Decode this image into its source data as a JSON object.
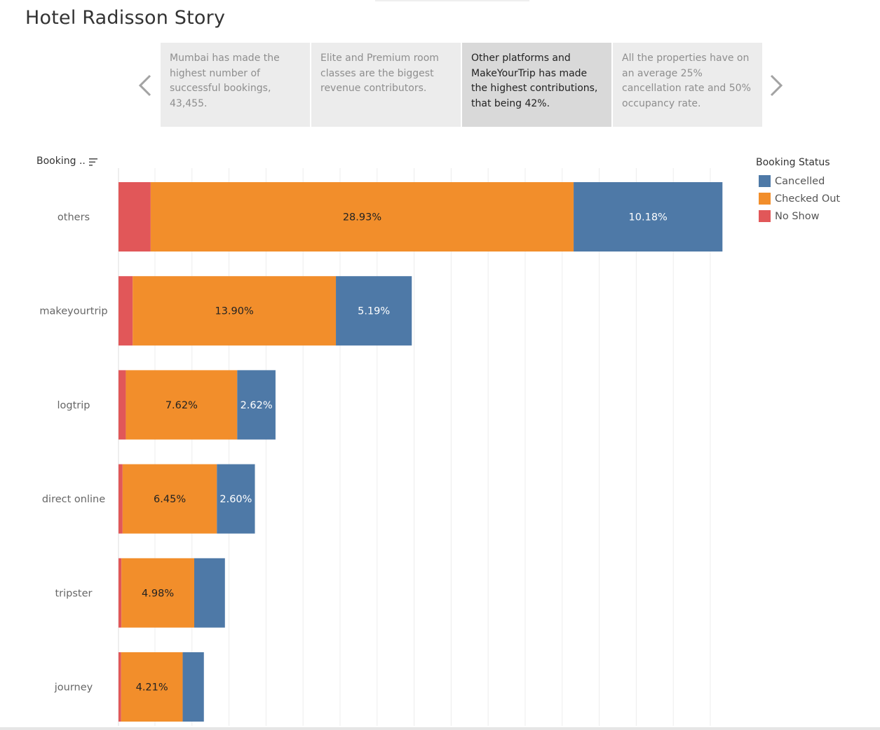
{
  "title": "Hotel Radisson Story",
  "navigation": {
    "prev_icon": "chevron-left-icon",
    "next_icon": "chevron-right-icon"
  },
  "story_points": [
    {
      "text": "Mumbai has made the highest number of successful bookings, 43,455.",
      "active": false
    },
    {
      "text": "Elite and Premium room classes are the biggest revenue contributors.",
      "active": false
    },
    {
      "text": "Other platforms and MakeYourTrip has made the highest contributions, that being 42%.",
      "active": true
    },
    {
      "text": "All the properties have on an average 25% cancellation rate and 50% occupancy rate.",
      "active": false
    }
  ],
  "y_header": "Booking ..",
  "sort_icon": "sort-descending-icon",
  "legend": {
    "title": "Booking Status",
    "items": [
      {
        "label": "Cancelled",
        "color": "#4e79a7"
      },
      {
        "label": "Checked Out",
        "color": "#f28e2b"
      },
      {
        "label": "No Show",
        "color": "#e15759"
      }
    ]
  },
  "chart_data": {
    "type": "bar",
    "orientation": "horizontal",
    "stacked": true,
    "categories": [
      "others",
      "makeyourtrip",
      "logtrip",
      "direct online",
      "tripster",
      "journey"
    ],
    "series": [
      {
        "name": "No Show",
        "color": "#e15759",
        "values": [
          2.2,
          0.97,
          0.5,
          0.28,
          0.2,
          0.18
        ],
        "labels": [
          "",
          "",
          "",
          "",
          "",
          ""
        ]
      },
      {
        "name": "Checked Out",
        "color": "#f28e2b",
        "values": [
          28.93,
          13.9,
          7.62,
          6.45,
          4.98,
          4.21
        ],
        "labels": [
          "28.93%",
          "13.90%",
          "7.62%",
          "6.45%",
          "4.98%",
          "4.21%"
        ]
      },
      {
        "name": "Cancelled",
        "color": "#4e79a7",
        "values": [
          10.18,
          5.19,
          2.62,
          2.6,
          2.1,
          1.45
        ],
        "labels": [
          "10.18%",
          "5.19%",
          "2.62%",
          "2.60%",
          "",
          ""
        ]
      }
    ],
    "xlim": [
      0,
      43
    ],
    "grid": true,
    "legend_position": "right"
  }
}
